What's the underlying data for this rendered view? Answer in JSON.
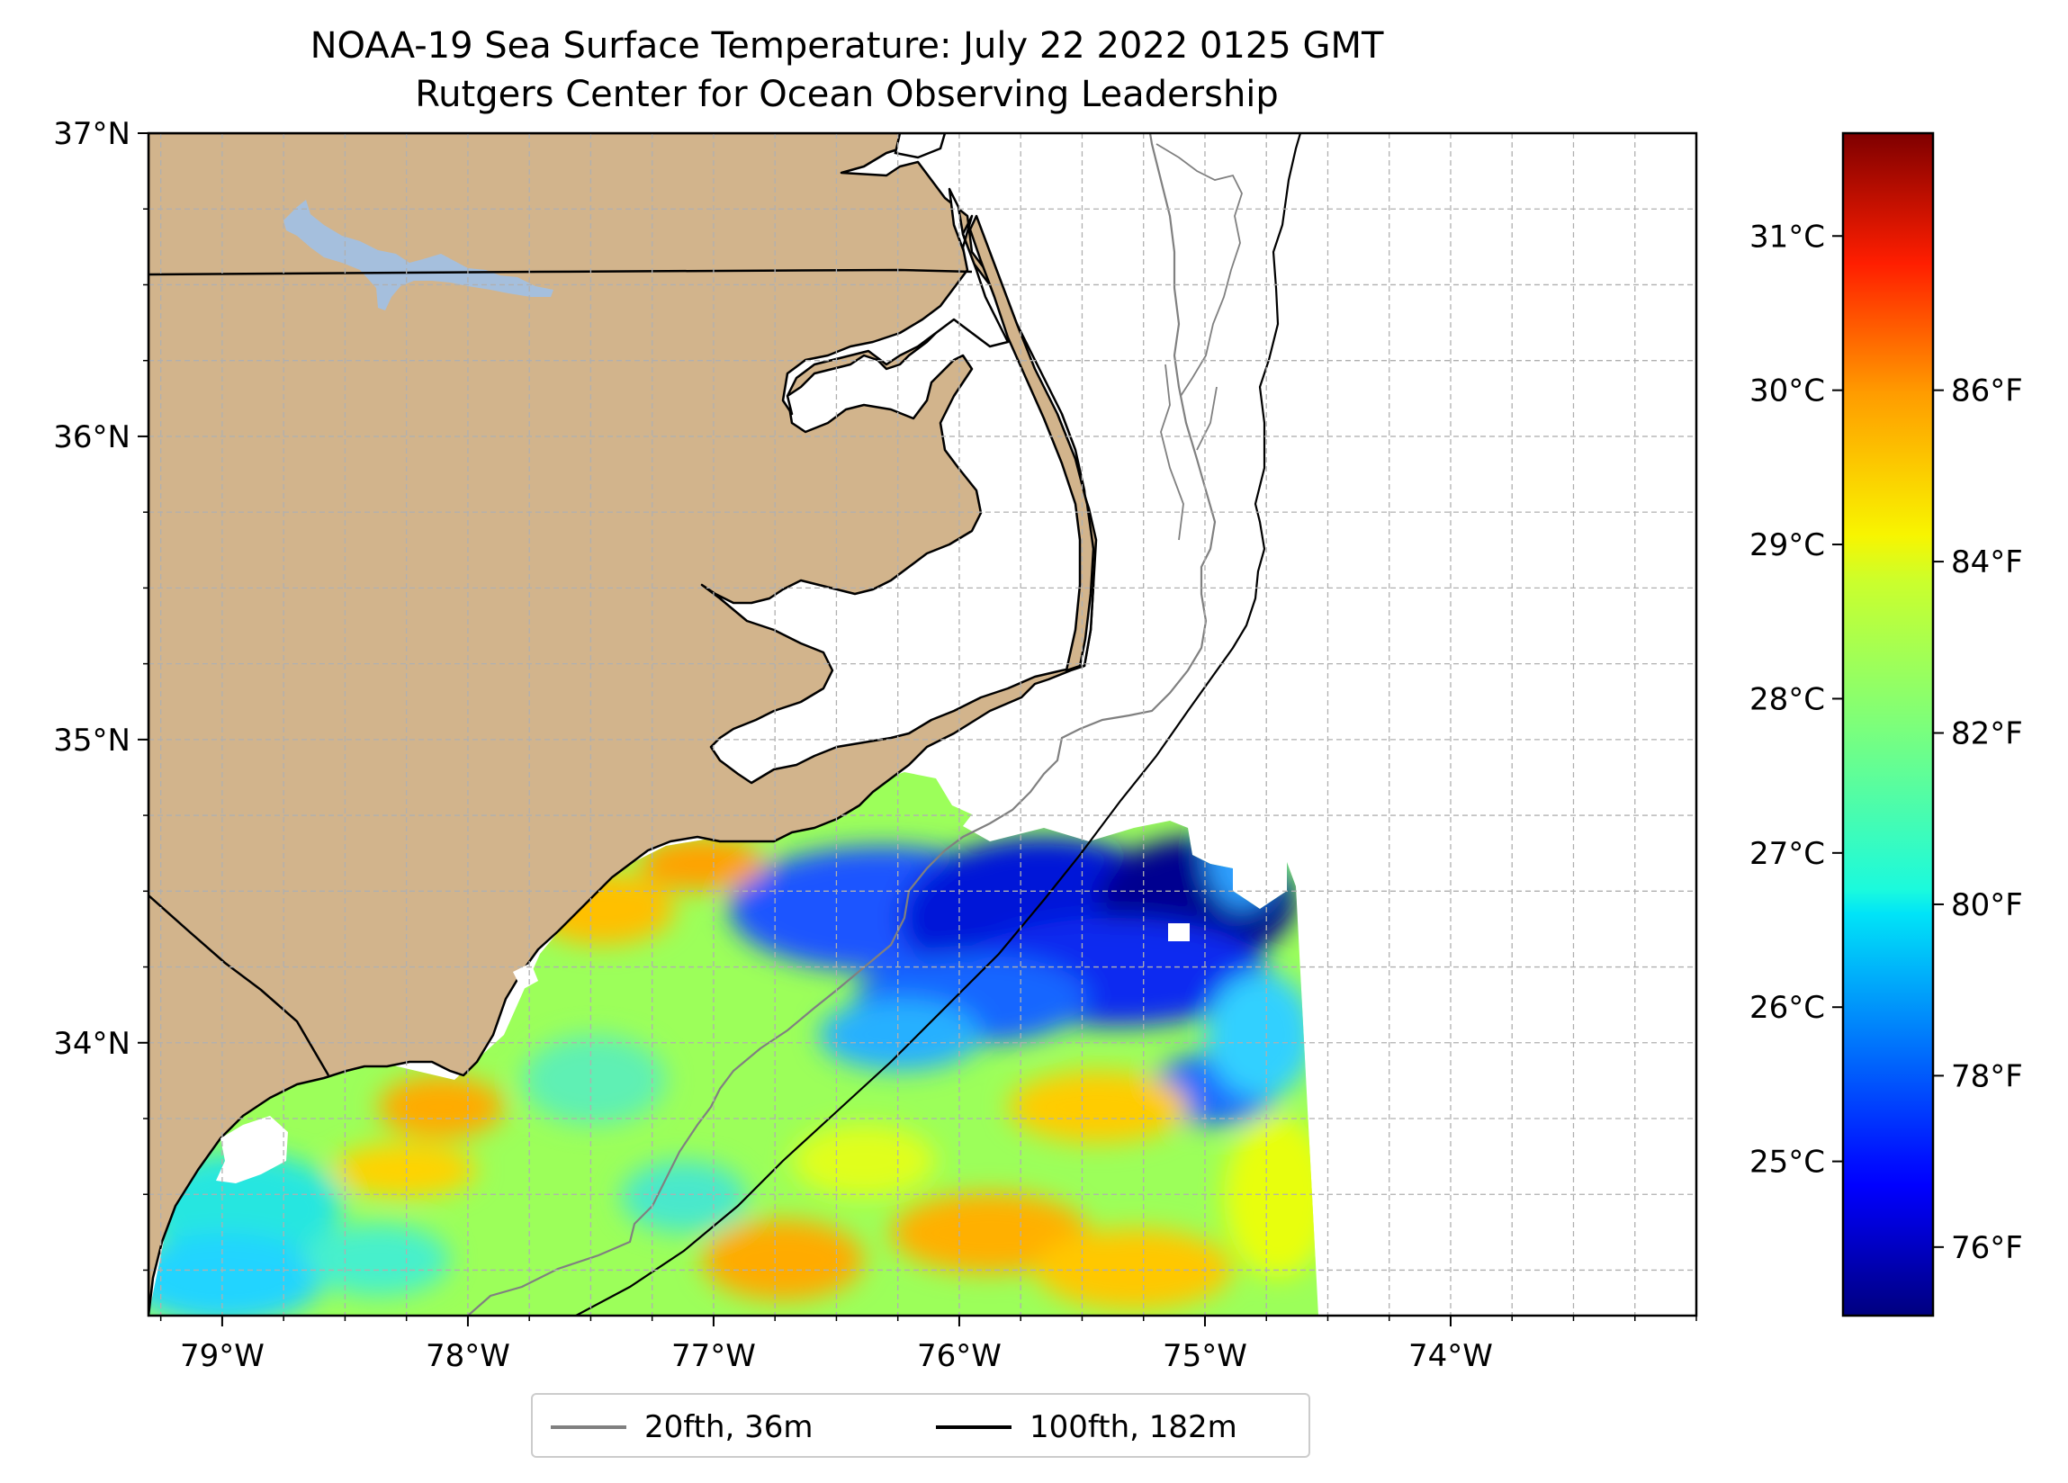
{
  "title": {
    "line1": "NOAA-19 Sea Surface Temperature: July 22 2022 0125 GMT",
    "line2": "Rutgers Center for Ocean Observing Leadership"
  },
  "map": {
    "lon_range": [
      -79.3,
      -73.0
    ],
    "lat_range": [
      33.1,
      37.0
    ],
    "lon_ticks": [
      {
        "value": -79,
        "label": "79°W"
      },
      {
        "value": -78,
        "label": "78°W"
      },
      {
        "value": -77,
        "label": "77°W"
      },
      {
        "value": -76,
        "label": "76°W"
      },
      {
        "value": -75,
        "label": "75°W"
      },
      {
        "value": -74,
        "label": "74°W"
      }
    ],
    "lat_ticks": [
      {
        "value": 37,
        "label": "37°N"
      },
      {
        "value": 36,
        "label": "36°N"
      },
      {
        "value": 35,
        "label": "35°N"
      },
      {
        "value": 34,
        "label": "34°N"
      }
    ],
    "minor_grid_step_deg": 0.25,
    "colors": {
      "land": "#d2b48c",
      "lake": "#a5bfdd",
      "coast": "#000000",
      "isobath_20": "#808080",
      "isobath_100": "#000000",
      "grid": "#b0b0b0"
    }
  },
  "colorbar": {
    "celsius_ticks": [
      {
        "value": 31,
        "label": "31°C"
      },
      {
        "value": 30,
        "label": "30°C"
      },
      {
        "value": 29,
        "label": "29°C"
      },
      {
        "value": 28,
        "label": "28°C"
      },
      {
        "value": 27,
        "label": "27°C"
      },
      {
        "value": 26,
        "label": "26°C"
      },
      {
        "value": 25,
        "label": "25°C"
      }
    ],
    "fahrenheit_ticks": [
      {
        "value": 86,
        "label": "86°F"
      },
      {
        "value": 84,
        "label": "84°F"
      },
      {
        "value": 82,
        "label": "82°F"
      },
      {
        "value": 80,
        "label": "80°F"
      },
      {
        "value": 78,
        "label": "78°F"
      },
      {
        "value": 76,
        "label": "76°F"
      }
    ],
    "fahrenheit_range": [
      75.2,
      89.0
    ],
    "colormap": "jet"
  },
  "legend": {
    "items": [
      {
        "label": "20fth, 36m",
        "color": "#808080"
      },
      {
        "label": "100fth, 182m",
        "color": "#000000"
      }
    ]
  }
}
